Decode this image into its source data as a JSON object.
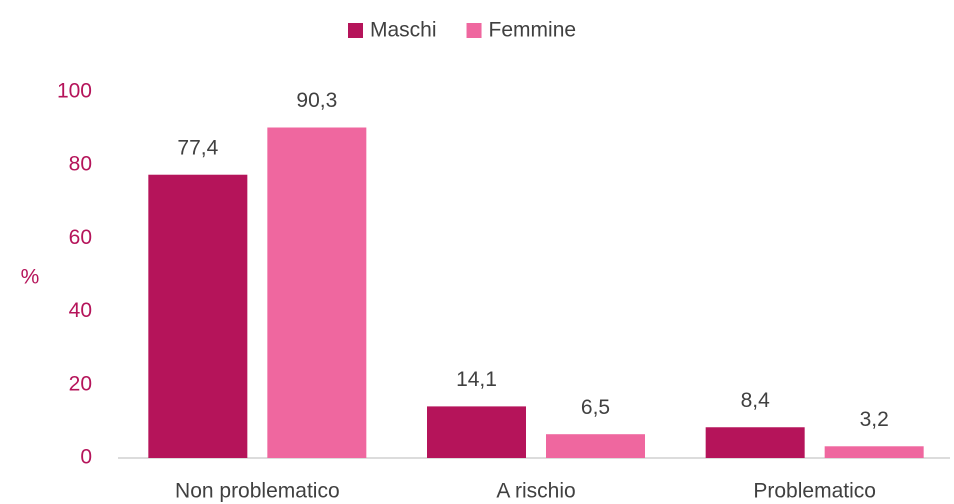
{
  "chart_data": {
    "type": "bar",
    "categories": [
      "Non problematico",
      "A rischio",
      "Problematico"
    ],
    "series": [
      {
        "name": "Maschi",
        "color": "#b5145a",
        "values": [
          77.4,
          14.1,
          8.4
        ],
        "value_labels": [
          "77,4",
          "14,1",
          "8,4"
        ]
      },
      {
        "name": "Femmine",
        "color": "#ef679f",
        "values": [
          90.3,
          6.5,
          3.2
        ],
        "value_labels": [
          "90,3",
          "6,5",
          "3,2"
        ]
      }
    ],
    "y_label": "%",
    "ylim": [
      0,
      100
    ],
    "yticks": [
      0,
      20,
      40,
      60,
      80,
      100
    ],
    "grid": false,
    "legend": "top"
  }
}
